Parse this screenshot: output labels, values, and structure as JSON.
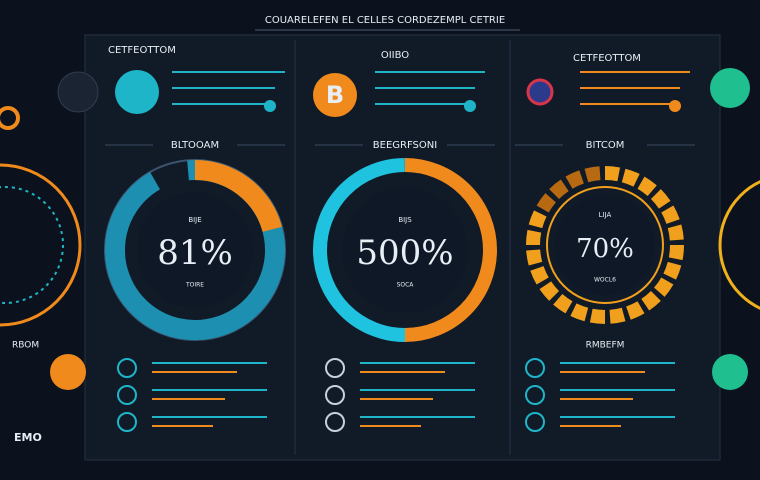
{
  "header": {
    "title": "COUARELEFEN EL CELLES CORDEZEMPL CETRIE"
  },
  "panels": [
    {
      "heading": "CETFEOTTOM",
      "section": "BLTOOAM",
      "gauge": {
        "top": "BIJE",
        "value_text": "81%",
        "bottom": "TOIRE"
      }
    },
    {
      "heading": "OIIBO",
      "icon": "B",
      "section": "BEEGRFSONI",
      "gauge": {
        "top": "BIJS",
        "value_text": "500%",
        "bottom": "SOCA"
      }
    },
    {
      "heading": "CETFEOTTOM",
      "section": "BITCOM",
      "gauge": {
        "top": "LIJA",
        "value_text": "70%",
        "bottom": "WOCL6"
      },
      "rows_label": "RMBEFM"
    }
  ],
  "side": {
    "left_label": "RBOM",
    "left_bottom": "EMO"
  }
}
